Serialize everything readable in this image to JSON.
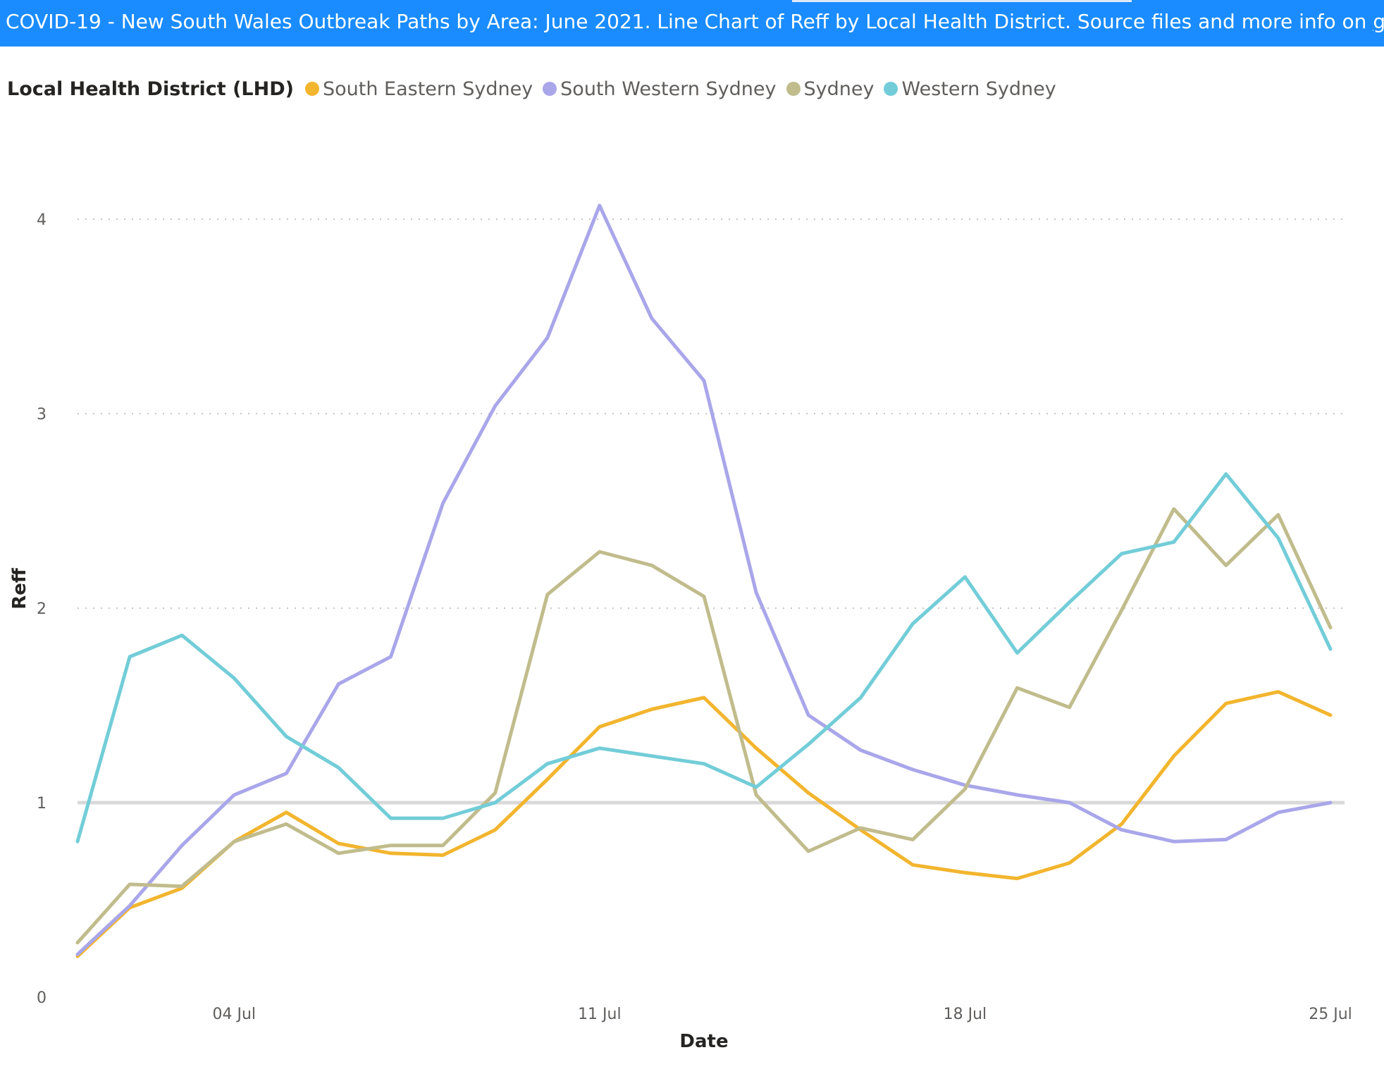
{
  "banner": {
    "text": "COVID-19  - New South Wales Outbreak Paths by Area: June 2021.  Line Chart of Reff by Local Health District. Source files and more info on ",
    "link_text": "github",
    "suffix": "."
  },
  "legend": {
    "title": "Local Health District (LHD)",
    "items": [
      {
        "label": "South Eastern Sydney",
        "color": "#f2b52e"
      },
      {
        "label": "South Western Sydney",
        "color": "#a9a6ea"
      },
      {
        "label": "Sydney",
        "color": "#c1bc8c"
      },
      {
        "label": "Western Sydney",
        "color": "#72cdd8"
      }
    ]
  },
  "chart_data": {
    "type": "line",
    "xlabel": "Date",
    "ylabel": "Reff",
    "x": [
      "01 Jul",
      "02 Jul",
      "03 Jul",
      "04 Jul",
      "05 Jul",
      "06 Jul",
      "07 Jul",
      "08 Jul",
      "09 Jul",
      "10 Jul",
      "11 Jul",
      "12 Jul",
      "13 Jul",
      "14 Jul",
      "15 Jul",
      "16 Jul",
      "17 Jul",
      "18 Jul",
      "19 Jul",
      "20 Jul",
      "21 Jul",
      "22 Jul",
      "23 Jul",
      "24 Jul",
      "25 Jul"
    ],
    "x_tick_labels": [
      "04 Jul",
      "11 Jul",
      "18 Jul",
      "25 Jul"
    ],
    "ylim": [
      0,
      4.2
    ],
    "y_ticks": [
      0,
      1,
      2,
      3,
      4
    ],
    "gridlines": "horizontal dotted",
    "reference_line": 1,
    "legend_position": "top-left",
    "series": [
      {
        "name": "South Eastern Sydney",
        "color": "#f2b52e",
        "values": [
          0.21,
          0.46,
          0.56,
          0.8,
          0.95,
          0.79,
          0.74,
          0.73,
          0.86,
          1.12,
          1.39,
          1.48,
          1.54,
          1.28,
          1.05,
          0.86,
          0.68,
          0.64,
          0.61,
          0.69,
          0.89,
          1.24,
          1.51,
          1.57,
          1.45
        ]
      },
      {
        "name": "South Western Sydney",
        "color": "#a9a6ea",
        "values": [
          0.22,
          0.47,
          0.78,
          1.04,
          1.15,
          1.61,
          1.75,
          2.54,
          3.04,
          3.39,
          4.07,
          3.49,
          3.17,
          2.08,
          1.45,
          1.27,
          1.17,
          1.09,
          1.04,
          1.0,
          0.86,
          0.8,
          0.81,
          0.95,
          1.0
        ]
      },
      {
        "name": "Sydney",
        "color": "#c1bc8c",
        "values": [
          0.28,
          0.58,
          0.57,
          0.8,
          0.89,
          0.74,
          0.78,
          0.78,
          1.05,
          2.07,
          2.29,
          2.22,
          2.06,
          1.04,
          0.75,
          0.87,
          0.81,
          1.07,
          1.59,
          1.49,
          1.99,
          2.51,
          2.22,
          2.48,
          1.9
        ]
      },
      {
        "name": "Western Sydney",
        "color": "#72cdd8",
        "values": [
          0.8,
          1.75,
          1.86,
          1.64,
          1.34,
          1.18,
          0.92,
          0.92,
          1.0,
          1.2,
          1.28,
          1.24,
          1.2,
          1.08,
          1.3,
          1.54,
          1.92,
          2.16,
          1.77,
          2.03,
          2.28,
          2.34,
          2.69,
          2.36,
          1.79
        ]
      }
    ]
  }
}
